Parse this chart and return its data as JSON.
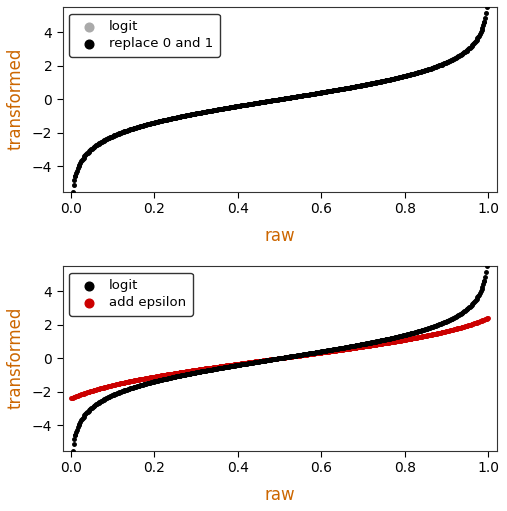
{
  "n_points": 500,
  "epsilon": 0.1,
  "replace_val": 0.01,
  "xlim": [
    -0.02,
    1.02
  ],
  "ylim": [
    -5.5,
    5.5
  ],
  "yticks": [
    -4,
    -2,
    0,
    2,
    4
  ],
  "xticks": [
    0.0,
    0.2,
    0.4,
    0.6,
    0.8,
    1.0
  ],
  "xlabel": "raw",
  "ylabel": "transformed",
  "top_legend1": "logit",
  "top_legend2": "replace 0 and 1",
  "bot_legend1": "logit",
  "bot_legend2": "add epsilon",
  "color_gray": "#aaaaaa",
  "color_black": "#000000",
  "color_red": "#cc0000",
  "bg_color": "#ffffff",
  "marker_size": 2.5,
  "label_color": "#cc6600",
  "tick_color": "#000000",
  "figsize": [
    5.07,
    5.11
  ],
  "dpi": 100
}
